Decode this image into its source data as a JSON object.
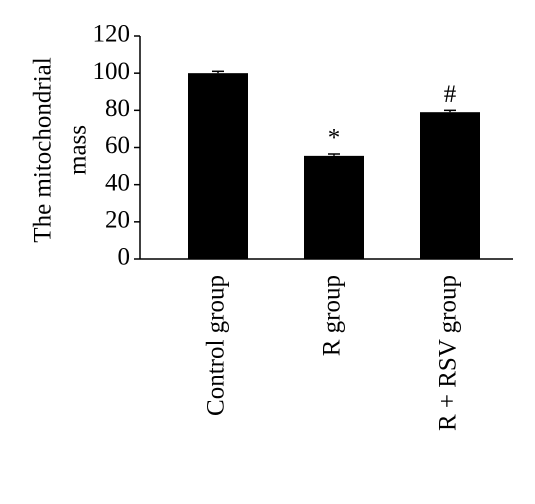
{
  "chart_data": {
    "type": "bar",
    "ylabel": [
      "The mitochondrial",
      "mass"
    ],
    "categories": [
      "Control group",
      "R group",
      "R + RSV group"
    ],
    "values": [
      100,
      55.5,
      79
    ],
    "errors": [
      1,
      1,
      1
    ],
    "color": "#000000",
    "ylim": [
      0,
      120
    ],
    "yticks": [
      0,
      20,
      40,
      60,
      80,
      100,
      120
    ],
    "annotations": [
      {
        "category": "R group",
        "text": "*"
      },
      {
        "category": "R + RSV group",
        "text": "#"
      }
    ]
  }
}
